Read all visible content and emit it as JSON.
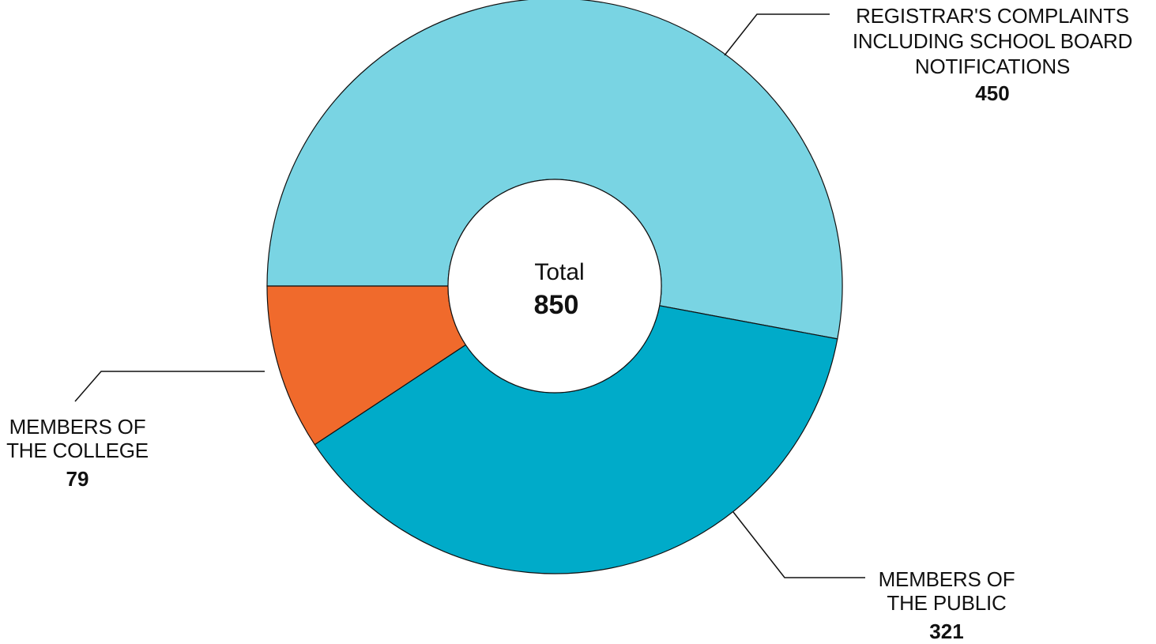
{
  "chart_data": {
    "type": "pie",
    "center_label": "Total",
    "total": 850,
    "slices": [
      {
        "name_lines": [
          "REGISTRAR'S COMPLAINTS",
          "INCLUDING SCHOOL BOARD",
          "NOTIFICATIONS"
        ],
        "value": 450,
        "color": "#79d4e3"
      },
      {
        "name_lines": [
          "MEMBERS OF",
          "THE PUBLIC"
        ],
        "value": 321,
        "color": "#00abc9"
      },
      {
        "name_lines": [
          "MEMBERS OF",
          "THE COLLEGE"
        ],
        "value": 79,
        "color": "#f06a2c"
      }
    ]
  }
}
